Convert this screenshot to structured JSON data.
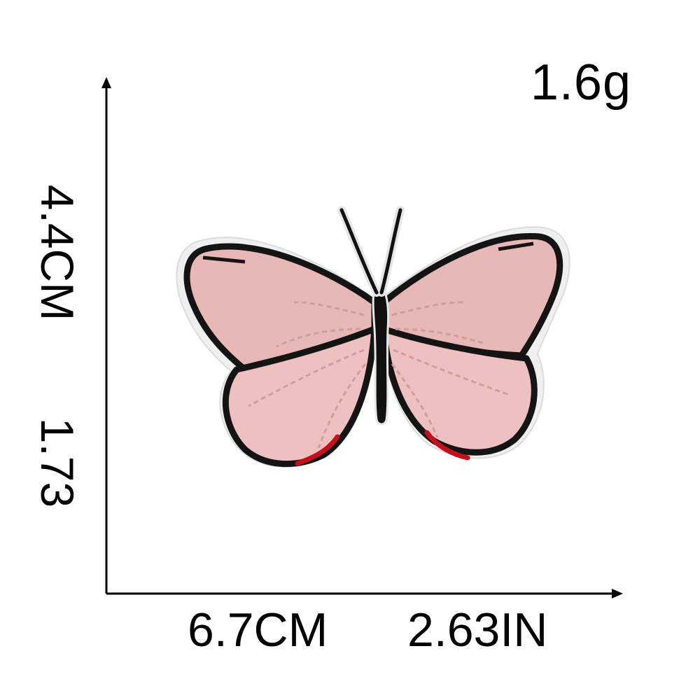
{
  "weight": "1.6g",
  "height": {
    "cm": "4.4CM",
    "in": "1.73"
  },
  "width": {
    "cm": "6.7CM",
    "in": "2.63IN"
  },
  "product": {
    "subject": "butterfly-patch",
    "colors": {
      "wing": "#e9b9b9",
      "wing_light": "#f2c8c8",
      "outline": "#141414",
      "accent": "#c4101c",
      "border": "#eeeeee"
    }
  },
  "colors": {
    "text": "#000000",
    "axis": "#000000",
    "background": "#ffffff"
  }
}
